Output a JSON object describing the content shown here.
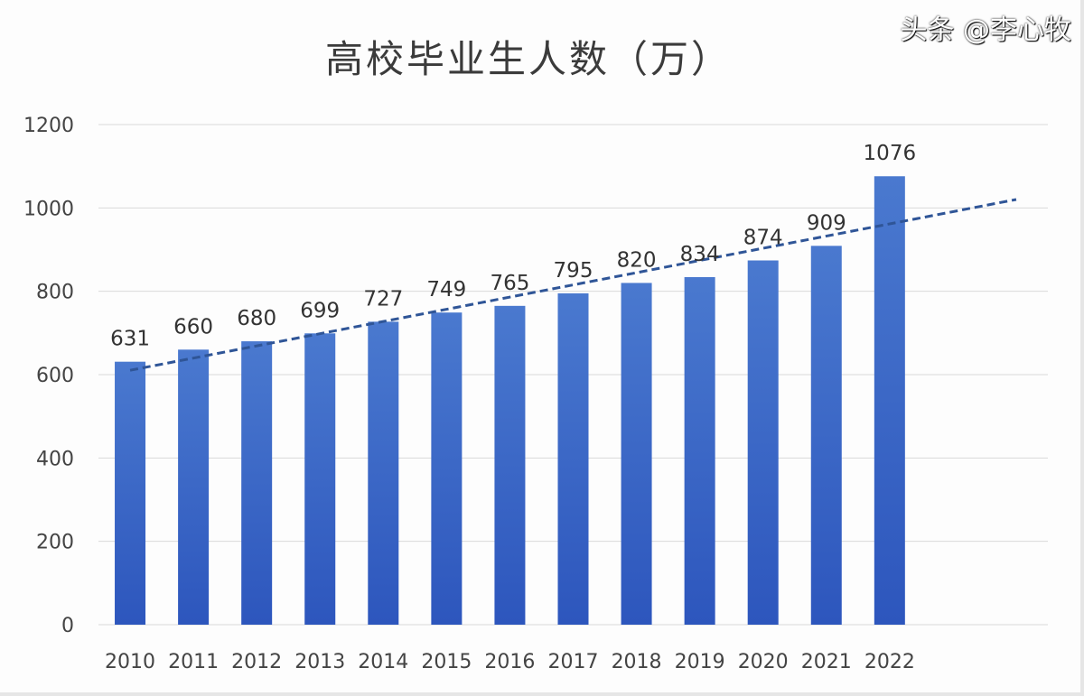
{
  "chart_data": {
    "type": "bar",
    "title": "高校毕业生人数（万）",
    "categories": [
      "2010",
      "2011",
      "2012",
      "2013",
      "2014",
      "2015",
      "2016",
      "2017",
      "2018",
      "2019",
      "2020",
      "2021",
      "2022"
    ],
    "values": [
      631,
      660,
      680,
      699,
      727,
      749,
      765,
      795,
      820,
      834,
      874,
      909,
      1076
    ],
    "ylim": [
      0,
      1200
    ],
    "yticks": [
      0,
      200,
      400,
      600,
      800,
      1000,
      1200
    ],
    "grid": true,
    "trendline": {
      "type": "linear",
      "style": "dashed"
    },
    "colors": {
      "bar": "#3b68c8",
      "trendline": "#2f5597",
      "grid": "#d9d9d9"
    }
  },
  "watermark": "头条 @李心牧"
}
